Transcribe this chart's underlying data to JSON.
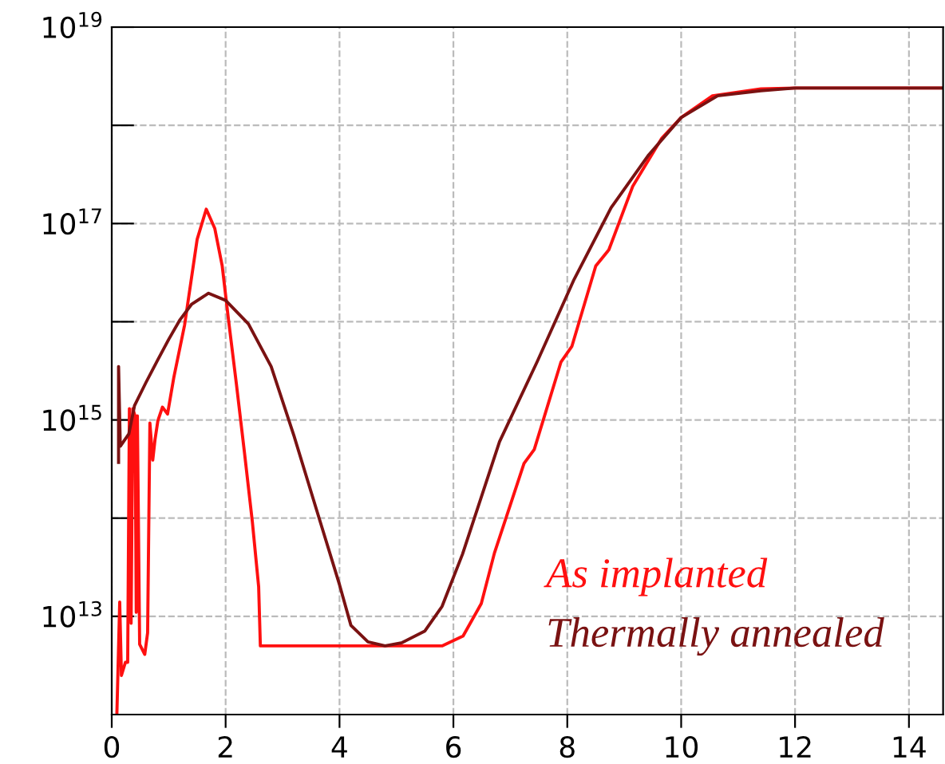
{
  "chart_data": {
    "type": "line",
    "log": "y",
    "grid": true,
    "legend": "bottom right",
    "line_style": "solid",
    "marker": "none",
    "xlim": [
      0,
      14.6
    ],
    "xticks": [
      0,
      2,
      4,
      6,
      8,
      10,
      12,
      14
    ],
    "ylim": [
      1000000000000.0,
      1e+19
    ],
    "yticks": [
      {
        "value": 10000000000000.0,
        "label": "10$^{13}$"
      },
      {
        "value": 100000000000000.0,
        "label": null
      },
      {
        "value": 1000000000000000.0,
        "label": "10$^{15}$"
      },
      {
        "value": 1e+16,
        "label": null
      },
      {
        "value": 1e+17,
        "label": "10$^{17}$"
      },
      {
        "value": 1e+18,
        "label": null
      },
      {
        "value": 1e+19,
        "label": "10$^{19}$"
      }
    ],
    "series": [
      {
        "name": "As implanted",
        "color": "#ff1010",
        "x": [
          0.09,
          0.14,
          0.17,
          0.24,
          0.28,
          0.31,
          0.34,
          0.37,
          0.41,
          0.43,
          0.45,
          0.49,
          0.58,
          0.63,
          0.67,
          0.72,
          0.76,
          0.81,
          0.89,
          0.98,
          1.09,
          1.28,
          1.5,
          1.66,
          1.81,
          1.94,
          2.05,
          2.19,
          2.33,
          2.47,
          2.58,
          2.61,
          5.8,
          6.17,
          6.49,
          6.72,
          7.24,
          7.42,
          7.89,
          8.08,
          8.5,
          8.73,
          9.15,
          9.38,
          9.66,
          10.0,
          10.55,
          11.4,
          12.0,
          14.6
        ],
        "values": [
          1000000000000.0,
          14000000000000.0,
          2500000000000.0,
          3400000000000.0,
          3400000000000.0,
          1300000000000000.0,
          8500000000000.0,
          1300000000000000.0,
          1100000000000000.0,
          11000000000000.0,
          1100000000000000.0,
          5200000000000.0,
          4100000000000.0,
          6800000000000.0,
          930000000000000.0,
          390000000000000.0,
          630000000000000.0,
          980000000000000.0,
          1350000000000000.0,
          1150000000000000.0,
          2700000000000000.0,
          9300000000000000.0,
          6.9e+16,
          1.4e+17,
          8.9e+16,
          3.7e+16,
          1.05e+16,
          2300000000000000.0,
          470000000000000.0,
          91000000000000.0,
          20000000000000.0,
          5000000000000.0,
          5000000000000.0,
          6300000000000.0,
          13500000000000.0,
          44000000000000.0,
          360000000000000.0,
          500000000000000.0,
          3900000000000000.0,
          5600000000000000.0,
          3.7e+16,
          5.4e+16,
          2.4e+17,
          4e+17,
          7.4e+17,
          1.2e+18,
          2e+18,
          2.35e+18,
          2.4e+18,
          2.4e+18
        ]
      },
      {
        "name": "Thermally annealed",
        "color": "#7a1212",
        "x": [
          0.12,
          0.12,
          0.15,
          0.3,
          0.4,
          0.6,
          0.8,
          1.0,
          1.2,
          1.4,
          1.7,
          2.0,
          2.4,
          2.8,
          3.2,
          3.6,
          4.0,
          4.2,
          4.5,
          4.8,
          5.1,
          5.5,
          5.8,
          6.16,
          6.81,
          7.47,
          8.12,
          8.77,
          9.43,
          10.0,
          10.64,
          11.4,
          12.0,
          14.6
        ],
        "values": [
          370000000000000.0,
          3500000000000000.0,
          540000000000000.0,
          720000000000000.0,
          1400000000000000.0,
          2400000000000000.0,
          4000000000000000.0,
          6600000000000000.0,
          1.05e+16,
          1.5e+16,
          1.95e+16,
          1.65e+16,
          9500000000000000.0,
          3500000000000000.0,
          690000000000000.0,
          120000000000000.0,
          21000000000000.0,
          8100000000000.0,
          5500000000000.0,
          5000000000000.0,
          5400000000000.0,
          7100000000000.0,
          12600000000000.0,
          43000000000000.0,
          600000000000000.0,
          3900000000000000.0,
          2.7e+16,
          1.45e+17,
          5e+17,
          1.2e+18,
          2e+18,
          2.25e+18,
          2.4e+18,
          2.4e+18
        ]
      }
    ]
  }
}
